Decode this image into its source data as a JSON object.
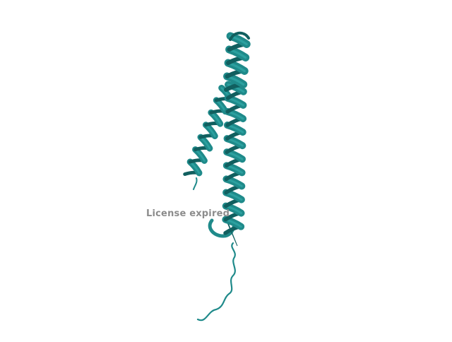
{
  "scene": {
    "subject": "protein-cartoon",
    "background_color": "#ffffff",
    "ribbon_color": "#1f8a8a",
    "ribbon_dark_color": "#115f5f",
    "ribbon_light_color": "#35b3b0"
  },
  "watermark": {
    "text": "License expired"
  }
}
